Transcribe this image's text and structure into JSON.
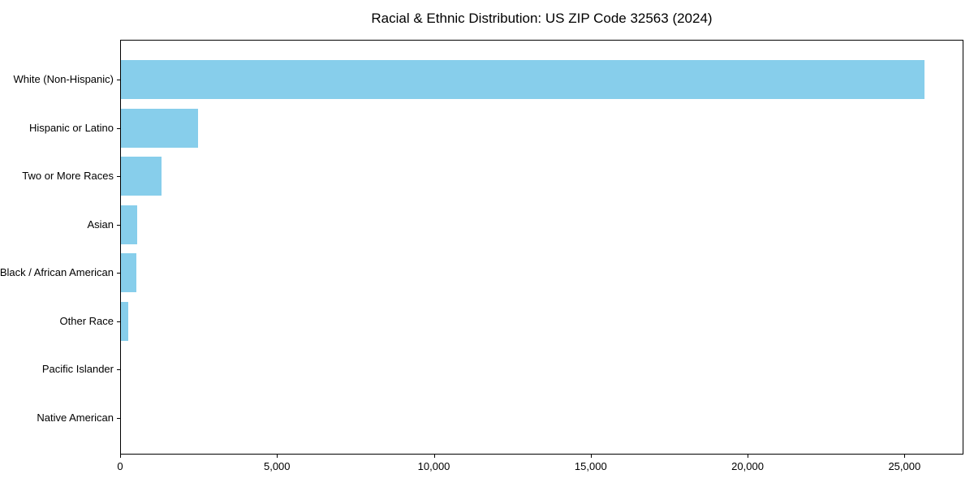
{
  "chart_data": {
    "type": "bar",
    "orientation": "horizontal",
    "title": "Racial & Ethnic Distribution: US ZIP Code 32563 (2024)",
    "xlabel": "",
    "ylabel": "",
    "categories": [
      "White (Non-Hispanic)",
      "Hispanic or Latino",
      "Two or More Races",
      "Asian",
      "Black / African American",
      "Other Race",
      "Pacific Islander",
      "Native American"
    ],
    "values": [
      25600,
      2450,
      1290,
      520,
      480,
      230,
      0,
      0
    ],
    "xlim": [
      0,
      26880
    ],
    "xticks": [
      0,
      5000,
      10000,
      15000,
      20000,
      25000
    ],
    "xtick_labels": [
      "0",
      "5,000",
      "10,000",
      "15,000",
      "20,000",
      "25,000"
    ],
    "bar_color": "#87CEEB",
    "spine_color": "#000000",
    "text_color": "#000000",
    "background_color": "#ffffff",
    "grid": false,
    "legend": null
  }
}
